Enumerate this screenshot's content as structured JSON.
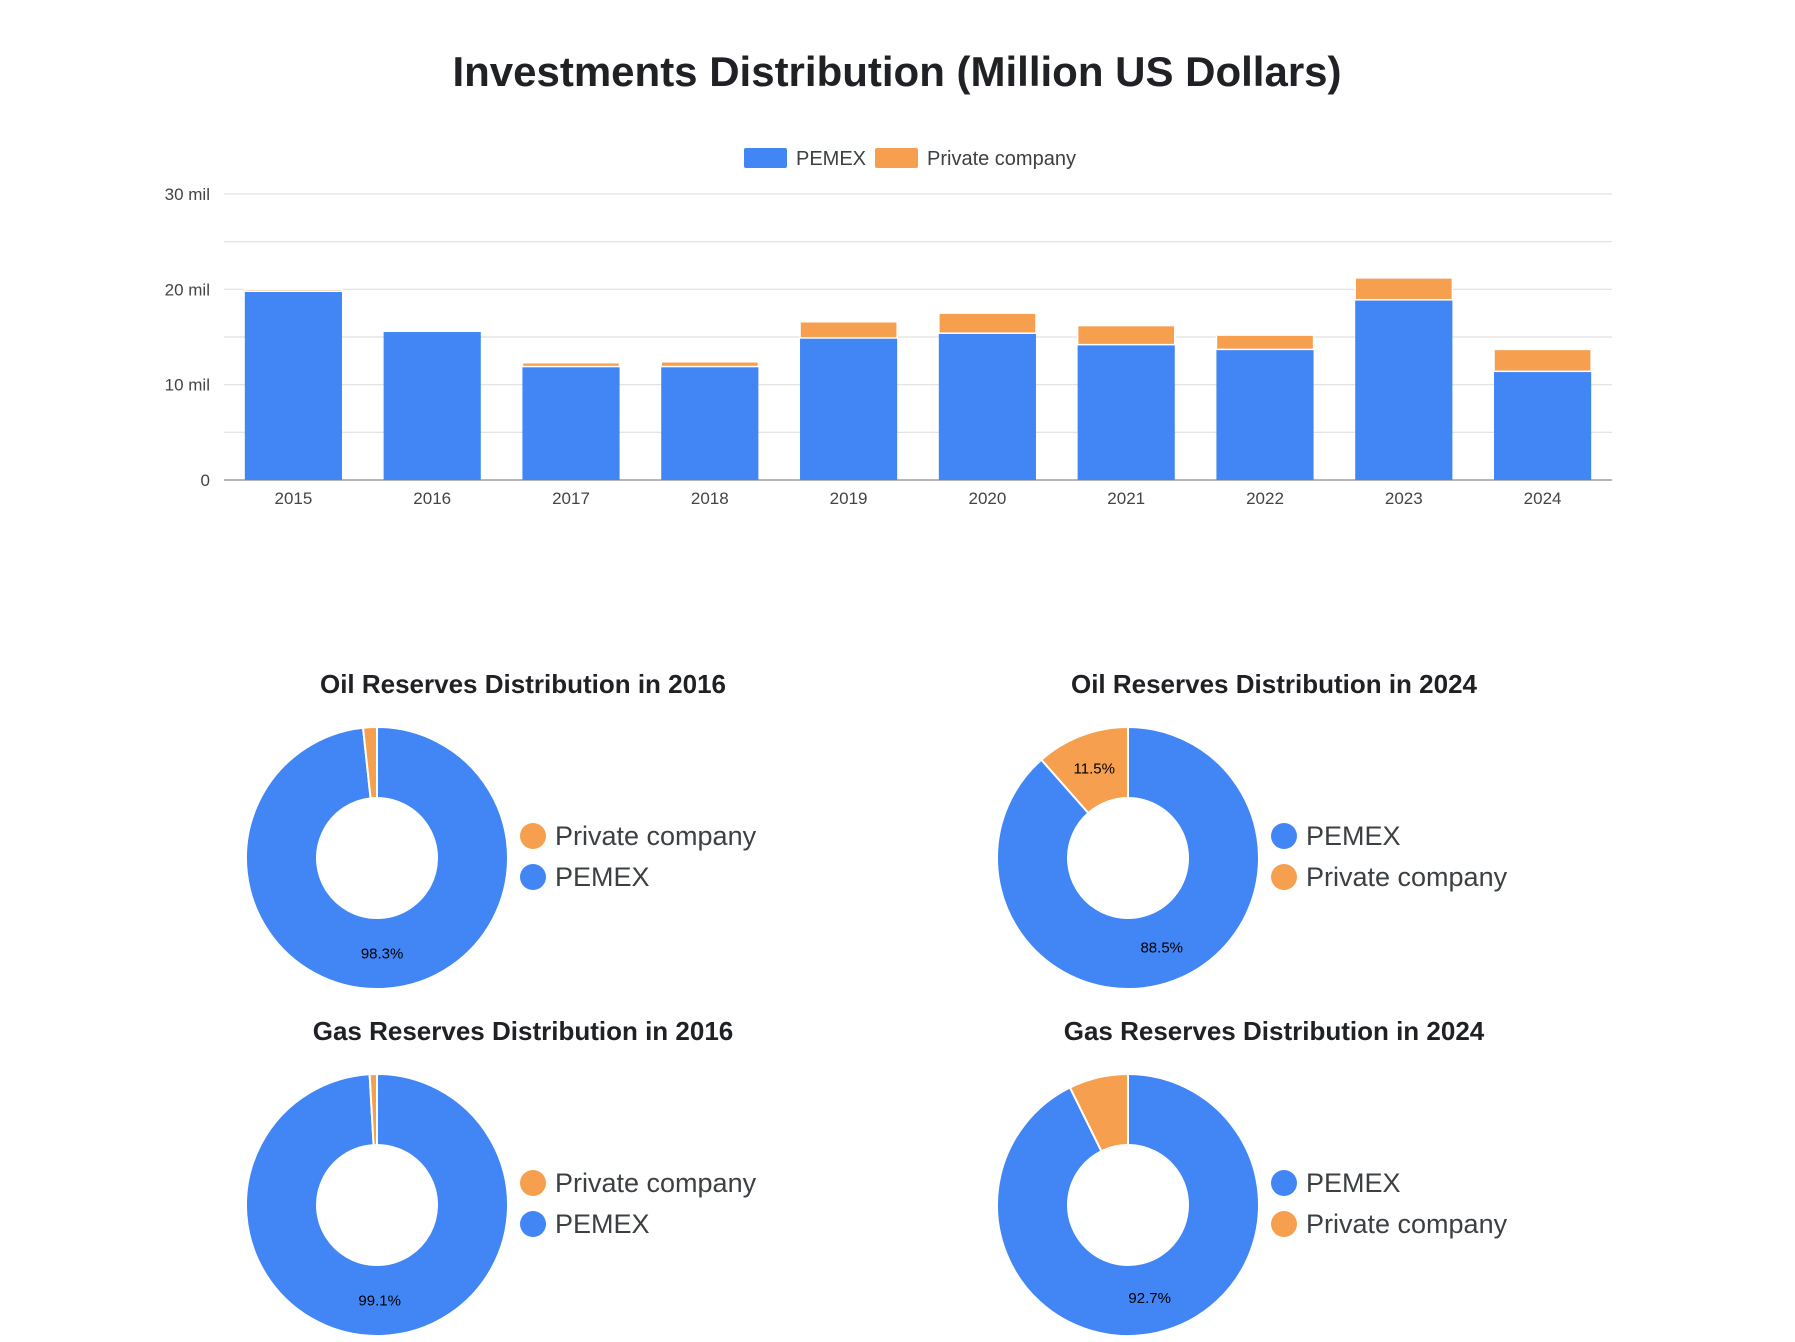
{
  "page_title": "Investments Distribution (Million US Dollars)",
  "colors": {
    "pemex": "#4285f4",
    "private": "#f59f4f",
    "grid": "#e0e0e0",
    "axis": "#9e9e9e",
    "text": "#202124",
    "tick": "#444444"
  },
  "chart_data": [
    {
      "type": "bar",
      "stacked": true,
      "title": "Investments Distribution (Million US Dollars)",
      "categories": [
        "2015",
        "2016",
        "2017",
        "2018",
        "2019",
        "2020",
        "2021",
        "2022",
        "2023",
        "2024"
      ],
      "series": [
        {
          "name": "PEMEX",
          "color": "#4285f4",
          "values": [
            19.8,
            15.6,
            11.9,
            11.9,
            14.9,
            15.4,
            14.2,
            13.7,
            18.9,
            11.4
          ]
        },
        {
          "name": "Private company",
          "color": "#f59f4f",
          "values": [
            0.2,
            0.1,
            0.4,
            0.5,
            1.7,
            2.1,
            2.0,
            1.5,
            2.3,
            2.3
          ]
        }
      ],
      "ylim": [
        0,
        30
      ],
      "yticks": [
        0,
        10,
        20,
        30
      ],
      "ytick_labels": [
        "0",
        "10 mil",
        "20 mil",
        "30 mil"
      ],
      "grid": true,
      "legend": "top-center"
    },
    {
      "type": "pie",
      "donut": true,
      "title": "Oil Reserves Distribution in 2016",
      "legend": "right",
      "legend_order": [
        "Private company",
        "PEMEX"
      ],
      "slices": [
        {
          "label": "PEMEX",
          "value": 98.3,
          "color": "#4285f4",
          "display": "98.3%"
        },
        {
          "label": "Private company",
          "value": 1.7,
          "color": "#f59f4f",
          "display": ""
        }
      ]
    },
    {
      "type": "pie",
      "donut": true,
      "title": "Oil Reserves Distribution in 2024",
      "legend": "right",
      "legend_order": [
        "PEMEX",
        "Private company"
      ],
      "slices": [
        {
          "label": "PEMEX",
          "value": 88.5,
          "color": "#4285f4",
          "display": "88.5%"
        },
        {
          "label": "Private company",
          "value": 11.5,
          "color": "#f59f4f",
          "display": "11.5%"
        }
      ]
    },
    {
      "type": "pie",
      "donut": true,
      "title": "Gas Reserves Distribution in 2016",
      "legend": "right",
      "legend_order": [
        "Private company",
        "PEMEX"
      ],
      "slices": [
        {
          "label": "PEMEX",
          "value": 99.1,
          "color": "#4285f4",
          "display": "99.1%"
        },
        {
          "label": "Private company",
          "value": 0.9,
          "color": "#f59f4f",
          "display": ""
        }
      ]
    },
    {
      "type": "pie",
      "donut": true,
      "title": "Gas Reserves Distribution in 2024",
      "legend": "right",
      "legend_order": [
        "PEMEX",
        "Private company"
      ],
      "slices": [
        {
          "label": "PEMEX",
          "value": 92.7,
          "color": "#4285f4",
          "display": "92.7%"
        },
        {
          "label": "Private company",
          "value": 7.3,
          "color": "#f59f4f",
          "display": ""
        }
      ]
    }
  ]
}
